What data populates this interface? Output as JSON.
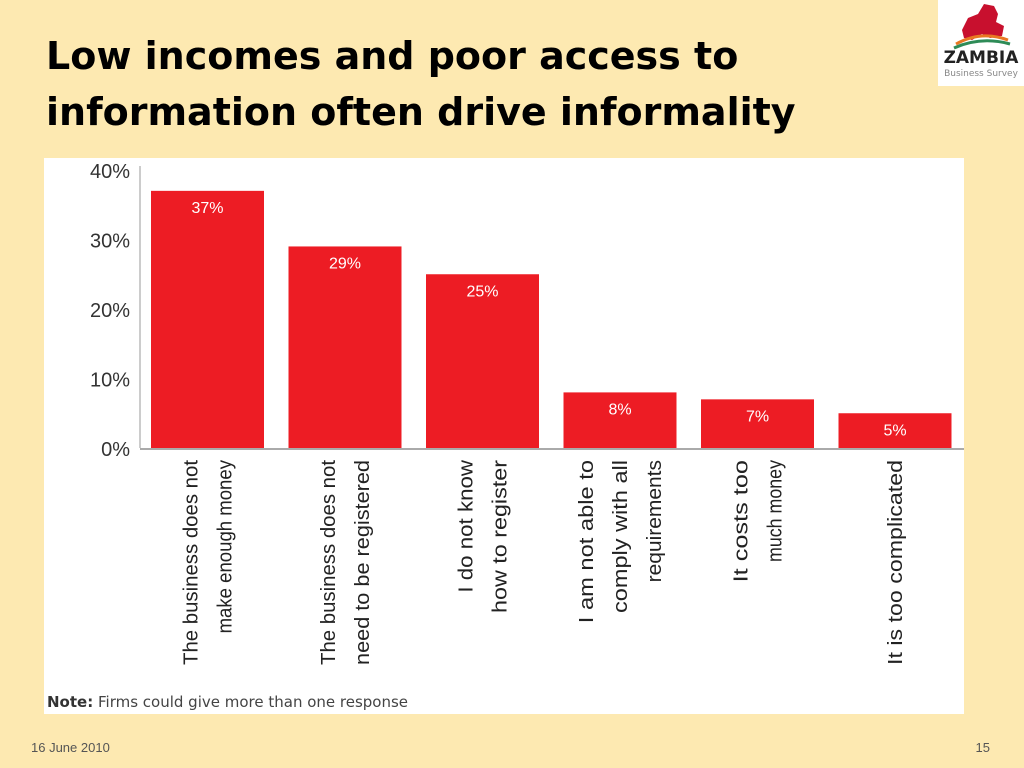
{
  "slide": {
    "title": "Low incomes and poor access to information often drive informality",
    "date": "16 June 2010",
    "page_number": "15"
  },
  "logo": {
    "word": "ZAMBIA",
    "subtitle": "Business Survey",
    "colors": [
      "#c8102e",
      "#e87722",
      "#2e8b57"
    ]
  },
  "note": {
    "label": "Note:",
    "text": "Firms could give more than one response"
  },
  "chart_data": {
    "type": "bar",
    "categories": [
      [
        "The business does not",
        "make enough money"
      ],
      [
        "The business does not",
        "need to be registered"
      ],
      [
        "I do not know",
        "how to register"
      ],
      [
        "I am not able to",
        "comply with all",
        "requirements"
      ],
      [
        "It costs too",
        "much money"
      ],
      [
        "It is too complicated"
      ]
    ],
    "values": [
      37,
      29,
      25,
      8,
      7,
      5
    ],
    "value_labels": [
      "37%",
      "29%",
      "25%",
      "8%",
      "7%",
      "5%"
    ],
    "y_ticks": [
      0,
      10,
      20,
      30,
      40
    ],
    "y_tick_labels": [
      "0%",
      "10%",
      "20%",
      "30%",
      "40%"
    ],
    "ylim": [
      0,
      40
    ],
    "title": "",
    "xlabel": "",
    "ylabel": "",
    "grid": false,
    "bar_color": "#ed1c24",
    "label_color": "#ffffff"
  }
}
